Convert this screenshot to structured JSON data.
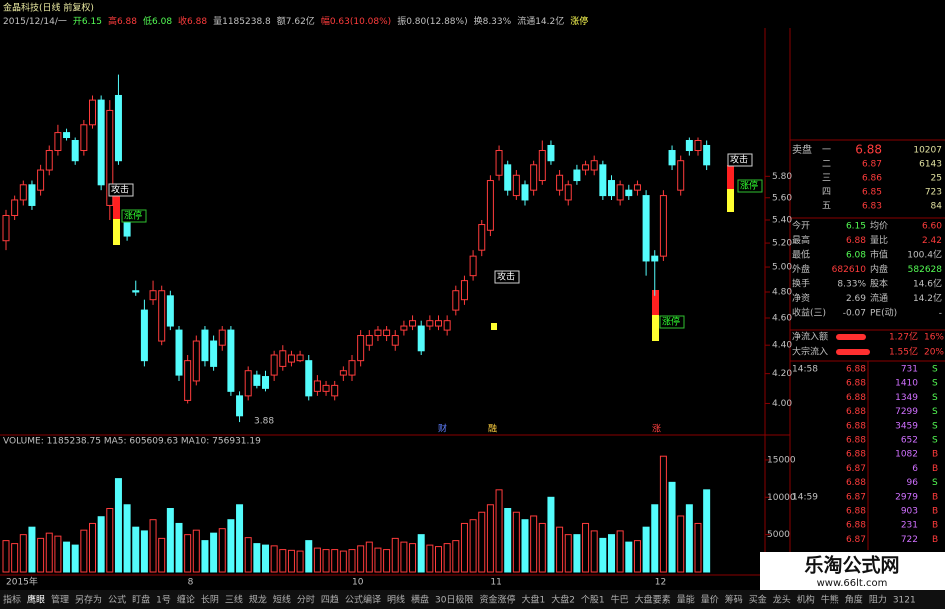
{
  "header": {
    "title": "金晶科技(日线 前复权)",
    "info": [
      {
        "text": "2015/12/14/一",
        "color": "#c0c0c0"
      },
      {
        "text": "开6.15",
        "color": "#54fc54"
      },
      {
        "text": "高6.88",
        "color": "#ff3c3c"
      },
      {
        "text": "低6.08",
        "color": "#54fc54"
      },
      {
        "text": "收6.88",
        "color": "#ff3c3c"
      },
      {
        "text": "量1185238.8",
        "color": "#c0c0c0"
      },
      {
        "text": "额7.62亿",
        "color": "#c0c0c0"
      },
      {
        "text": "幅0.63(10.08%)",
        "color": "#ff3c3c"
      },
      {
        "text": "振0.80(12.88%)",
        "color": "#c0c0c0"
      },
      {
        "text": "换8.33%",
        "color": "#c0c0c0"
      },
      {
        "text": "流通14.2亿",
        "color": "#c0c0c0"
      },
      {
        "text": "涨停",
        "color": "#ffff54"
      }
    ],
    "volume_info": "VOLUME: 1185238.75  MA5: 605609.63  MA10: 756931.19"
  },
  "chart_data": [
    {
      "type": "candlestick",
      "log_scale": true,
      "up_color": "#ff3c3c",
      "down_color": "#54fcfc",
      "ylim": [
        3.83,
        7.49
      ],
      "yticks": [
        {
          "value": 4.0,
          "label": "4.00"
        },
        {
          "value": 4.2,
          "label": "4.20"
        },
        {
          "value": 4.4,
          "label": "4.40"
        },
        {
          "value": 4.6,
          "label": "4.60"
        },
        {
          "value": 4.8,
          "label": "4.80"
        },
        {
          "value": 5.0,
          "label": "5.00"
        },
        {
          "value": 5.2,
          "label": "5.20"
        },
        {
          "value": 5.4,
          "label": "5.40"
        },
        {
          "value": 5.6,
          "label": "5.60"
        },
        {
          "value": 5.8,
          "label": "5.80"
        }
      ],
      "candles": {
        "open": [
          5.22,
          5.44,
          5.58,
          5.72,
          5.67,
          5.86,
          6.05,
          6.23,
          6.15,
          6.05,
          6.31,
          6.57,
          5.53,
          6.62,
          5.44,
          4.81,
          4.66,
          4.74,
          4.43,
          4.77,
          4.51,
          4.02,
          4.15,
          4.51,
          4.43,
          4.4,
          4.51,
          4.05,
          4.05,
          4.19,
          4.18,
          4.19,
          4.25,
          4.28,
          4.29,
          4.29,
          4.08,
          4.08,
          4.05,
          4.19,
          4.19,
          4.29,
          4.4,
          4.47,
          4.47,
          4.4,
          4.51,
          4.54,
          4.54,
          4.54,
          4.54,
          4.51,
          4.66,
          4.74,
          4.93,
          5.14,
          5.31,
          5.81,
          5.91,
          5.62,
          5.72,
          5.67,
          5.76,
          6.1,
          5.67,
          5.58,
          5.86,
          5.86,
          5.86,
          5.91,
          5.76,
          5.58,
          5.67,
          5.67,
          5.62,
          5.09,
          5.09,
          6.05,
          5.67,
          6.15,
          6.05,
          6.1
        ],
        "close": [
          5.44,
          5.58,
          5.72,
          5.53,
          5.86,
          6.05,
          6.23,
          6.18,
          5.95,
          6.31,
          6.57,
          5.72,
          6.46,
          5.95,
          5.26,
          4.8,
          4.29,
          4.81,
          4.81,
          4.54,
          4.19,
          4.29,
          4.43,
          4.29,
          4.25,
          4.51,
          4.08,
          3.92,
          4.22,
          4.12,
          4.1,
          4.33,
          4.36,
          4.33,
          4.33,
          4.05,
          4.15,
          4.12,
          4.12,
          4.22,
          4.29,
          4.47,
          4.47,
          4.51,
          4.51,
          4.47,
          4.54,
          4.58,
          4.36,
          4.58,
          4.58,
          4.58,
          4.81,
          4.89,
          5.09,
          5.36,
          5.76,
          6.05,
          5.67,
          5.81,
          5.58,
          5.91,
          6.05,
          5.95,
          5.81,
          5.72,
          5.76,
          5.91,
          5.95,
          5.62,
          5.62,
          5.72,
          5.62,
          5.72,
          5.05,
          5.05,
          5.62,
          5.91,
          5.95,
          6.05,
          6.15,
          5.91
        ],
        "high": [
          5.49,
          5.62,
          5.76,
          5.76,
          5.91,
          6.1,
          6.31,
          6.27,
          6.18,
          6.36,
          6.62,
          6.62,
          6.57,
          6.85,
          5.49,
          4.89,
          4.74,
          4.89,
          4.85,
          4.81,
          4.54,
          4.33,
          4.47,
          4.54,
          4.47,
          4.54,
          4.54,
          4.08,
          4.25,
          4.22,
          4.22,
          4.36,
          4.4,
          4.36,
          4.36,
          4.33,
          4.19,
          4.15,
          4.15,
          4.25,
          4.33,
          4.51,
          4.51,
          4.54,
          4.54,
          4.51,
          4.58,
          4.62,
          4.58,
          4.62,
          4.62,
          4.62,
          4.85,
          4.93,
          5.14,
          5.4,
          5.81,
          6.1,
          5.95,
          5.86,
          5.76,
          5.95,
          6.15,
          6.15,
          5.86,
          5.76,
          5.91,
          5.95,
          6.0,
          5.95,
          5.81,
          5.76,
          5.72,
          5.76,
          5.67,
          5.14,
          5.67,
          6.1,
          6.0,
          6.18,
          6.18,
          6.15
        ],
        "low": [
          5.14,
          5.4,
          5.53,
          5.49,
          5.62,
          5.81,
          6.0,
          6.15,
          5.91,
          6.0,
          6.27,
          5.67,
          5.4,
          5.91,
          5.22,
          4.77,
          4.25,
          4.7,
          4.4,
          4.51,
          4.15,
          4.0,
          4.12,
          4.25,
          4.22,
          4.36,
          4.05,
          3.88,
          4.02,
          4.1,
          4.08,
          4.15,
          4.22,
          4.25,
          4.28,
          4.02,
          4.05,
          4.05,
          4.02,
          4.15,
          4.15,
          4.25,
          4.36,
          4.43,
          4.43,
          4.36,
          4.47,
          4.51,
          4.33,
          4.51,
          4.51,
          4.47,
          4.62,
          4.7,
          4.89,
          5.09,
          5.26,
          5.76,
          5.62,
          5.58,
          5.53,
          5.62,
          5.72,
          5.91,
          5.62,
          5.53,
          5.72,
          5.81,
          5.81,
          5.58,
          5.58,
          5.53,
          5.58,
          5.62,
          4.93,
          4.77,
          5.05,
          5.86,
          5.62,
          6.0,
          6.0,
          5.86
        ]
      },
      "annotations": [
        "攻击",
        "涨停",
        "攻击",
        "涨停",
        "攻击",
        "涨停",
        "3.88",
        "财",
        "融",
        "涨"
      ],
      "x_labels": [
        "2015年",
        "8",
        "10",
        "11",
        "12"
      ]
    },
    {
      "type": "bar",
      "ylim": [
        0,
        17000
      ],
      "yticks": [
        5000,
        10000,
        15000
      ],
      "values": [
        4200,
        3800,
        5000,
        6000,
        4500,
        5200,
        4800,
        4000,
        3600,
        5600,
        6500,
        7400,
        8500,
        12500,
        9000,
        6000,
        5500,
        7000,
        4500,
        8500,
        6500,
        5000,
        5600,
        4200,
        5200,
        5800,
        7000,
        9000,
        4600,
        3800,
        3600,
        3500,
        3000,
        2900,
        2800,
        4200,
        3200,
        3000,
        3000,
        2800,
        3000,
        3500,
        4000,
        3200,
        3000,
        4500,
        4000,
        3800,
        5000,
        3600,
        3400,
        3800,
        4200,
        6500,
        7000,
        8000,
        9000,
        11000,
        8500,
        8000,
        7000,
        7500,
        6500,
        10000,
        6000,
        5000,
        5000,
        6500,
        5500,
        4500,
        5000,
        5500,
        4000,
        4200,
        6000,
        9000,
        15500,
        12000,
        7500,
        9000,
        6500,
        11000
      ]
    }
  ],
  "panel": {
    "book_title": "卖盘",
    "book": [
      [
        "一",
        "6.88",
        "10207"
      ],
      [
        "二",
        "6.87",
        "6143"
      ],
      [
        "三",
        "6.86",
        "25"
      ],
      [
        "四",
        "6.85",
        "723"
      ],
      [
        "五",
        "6.83",
        "84"
      ]
    ],
    "stats": [
      [
        "今开",
        "6.15",
        "均价",
        "6.60"
      ],
      [
        "最高",
        "6.88",
        "量比",
        "2.42"
      ],
      [
        "最低",
        "6.08",
        "市值",
        "100.4亿"
      ],
      [
        "外盘",
        "682610",
        "内盘",
        "582628"
      ],
      [
        "换手",
        "8.33%",
        "股本",
        "14.6亿"
      ],
      [
        "净资",
        "2.69",
        "流通",
        "14.2亿"
      ],
      [
        "收益(三)",
        "-0.07",
        "PE(动)",
        "-"
      ]
    ],
    "flows": [
      [
        "净流入额",
        "1.27亿",
        "16%"
      ],
      [
        "大宗流入",
        "1.55亿",
        "20%"
      ]
    ],
    "trades": [
      [
        "14:58",
        "6.88",
        "731",
        "S"
      ],
      [
        "6.88",
        "1410",
        "S"
      ],
      [
        "6.88",
        "1349",
        "S"
      ],
      [
        "6.88",
        "7299",
        "S"
      ],
      [
        "6.88",
        "3459",
        "S"
      ],
      [
        "6.88",
        "652",
        "S"
      ],
      [
        "6.88",
        "1082",
        "B"
      ],
      [
        "6.87",
        "6",
        "B"
      ],
      [
        "6.88",
        "96",
        "S"
      ],
      [
        "14:59",
        "6.87",
        "2979",
        "B"
      ],
      [
        "6.88",
        "903",
        "B"
      ],
      [
        "6.88",
        "231",
        "B"
      ],
      [
        "6.87",
        "722",
        "B"
      ]
    ]
  },
  "tabs": [
    "指标",
    "鹰眼",
    "管理",
    "另存为",
    "公式",
    "盯盘",
    "1号",
    "缠论",
    "长阴",
    "三线",
    "规龙",
    "短线",
    "分时",
    "四趋",
    "公式编译",
    "明线",
    "横盘",
    "30日极限",
    "资金涨停",
    "大盘1",
    "大盘2",
    "个股1",
    "牛巴",
    "大盘要素",
    "量能",
    "量价",
    "筹码",
    "买金",
    "龙头",
    "机构",
    "牛熊",
    "角度",
    "阻力",
    "3121"
  ],
  "watermark": {
    "title": "乐淘公式网",
    "url": "www.66lt.com"
  }
}
